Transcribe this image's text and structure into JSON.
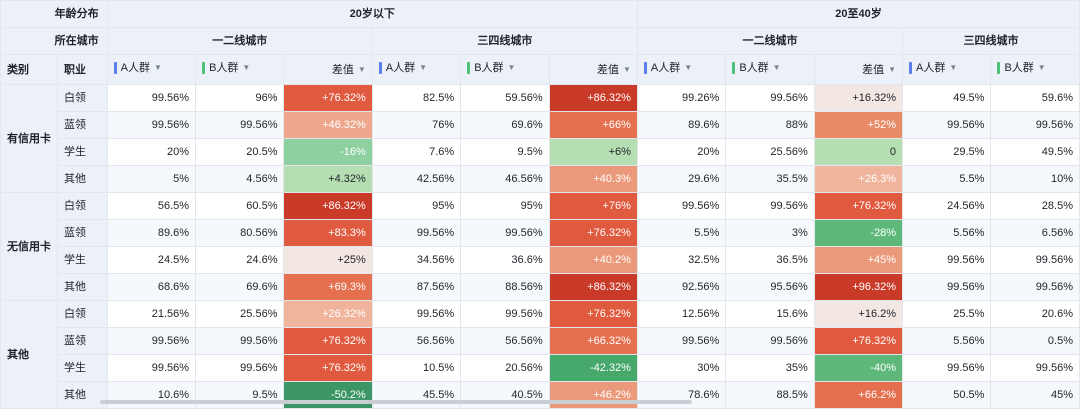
{
  "header": {
    "corner_row1": "年龄分布",
    "corner_row2": "所在城市",
    "col_category": "类别",
    "col_job": "职业",
    "age_groups": [
      {
        "label": "20岁以下",
        "cities": [
          {
            "label": "一二线城市",
            "metrics": [
              "A人群",
              "B人群",
              "差值"
            ]
          },
          {
            "label": "三四线城市",
            "metrics": [
              "A人群",
              "B人群",
              "差值"
            ]
          }
        ]
      },
      {
        "label": "20至40岁",
        "cities": [
          {
            "label": "一二线城市",
            "metrics": [
              "A人群",
              "B人群",
              "差值"
            ]
          },
          {
            "label": "三四线城市",
            "metrics": [
              "A人群",
              "B人群"
            ]
          }
        ]
      }
    ]
  },
  "colors": {
    "metric_a": "#5b7fe8",
    "metric_b": "#4cbf7a",
    "header_bg": "#ecf1f9",
    "border": "#e3e6eb",
    "diff_strong_pos": "#c93a28",
    "diff_pos": "#e05a3f",
    "diff_light_pos": "#eea78d",
    "diff_neutral": "#f5ece9",
    "diff_light_neg": "#b5dfb2",
    "diff_neg": "#5db87a",
    "diff_strong_neg": "#3c9564"
  },
  "rows": [
    {
      "category": "有信用卡",
      "job": "白领",
      "cells": [
        "99.56%",
        "96%",
        "+76.32%",
        "82.5%",
        "59.56%",
        "+86.32%",
        "99.26%",
        "99.56%",
        "+16.32%",
        "49.5%",
        "59.6%"
      ]
    },
    {
      "category": "有信用卡",
      "job": "蓝领",
      "cells": [
        "99.56%",
        "99.56%",
        "+46.32%",
        "76%",
        "69.6%",
        "+66%",
        "89.6%",
        "88%",
        "+52%",
        "99.56%",
        "99.56%"
      ]
    },
    {
      "category": "有信用卡",
      "job": "学生",
      "cells": [
        "20%",
        "20.5%",
        "-16%",
        "7.6%",
        "9.5%",
        "+6%",
        "20%",
        "25.56%",
        "0",
        "29.5%",
        "49.5%"
      ]
    },
    {
      "category": "有信用卡",
      "job": "其他",
      "cells": [
        "5%",
        "4.56%",
        "+4.32%",
        "42.56%",
        "46.56%",
        "+40.3%",
        "29.6%",
        "35.5%",
        "+26.3%",
        "5.5%",
        "10%"
      ]
    },
    {
      "category": "无信用卡",
      "job": "白领",
      "cells": [
        "56.5%",
        "60.5%",
        "+86.32%",
        "95%",
        "95%",
        "+76%",
        "99.56%",
        "99.56%",
        "+76.32%",
        "24.56%",
        "28.5%"
      ]
    },
    {
      "category": "无信用卡",
      "job": "蓝领",
      "cells": [
        "89.6%",
        "80.56%",
        "+83.3%",
        "99.56%",
        "99.56%",
        "+76.32%",
        "5.5%",
        "3%",
        "-28%",
        "5.56%",
        "6.56%"
      ]
    },
    {
      "category": "无信用卡",
      "job": "学生",
      "cells": [
        "24.5%",
        "24.6%",
        "+25%",
        "34.56%",
        "36.6%",
        "+40.2%",
        "32.5%",
        "36.5%",
        "+45%",
        "99.56%",
        "99.56%"
      ]
    },
    {
      "category": "无信用卡",
      "job": "其他",
      "cells": [
        "68.6%",
        "69.6%",
        "+69.3%",
        "87.56%",
        "88.56%",
        "+86.32%",
        "92.56%",
        "95.56%",
        "+96.32%",
        "99.56%",
        "99.56%"
      ]
    },
    {
      "category": "其他",
      "job": "白领",
      "cells": [
        "21.56%",
        "25.56%",
        "+26.32%",
        "99.56%",
        "99.56%",
        "+76.32%",
        "12.56%",
        "15.6%",
        "+16.2%",
        "25.5%",
        "20.6%"
      ]
    },
    {
      "category": "其他",
      "job": "蓝领",
      "cells": [
        "99.56%",
        "99.56%",
        "+76.32%",
        "56.56%",
        "56.56%",
        "+66.32%",
        "99.56%",
        "99.56%",
        "+76.32%",
        "5.56%",
        "0.5%"
      ]
    },
    {
      "category": "其他",
      "job": "学生",
      "cells": [
        "99.56%",
        "99.56%",
        "+76.32%",
        "10.5%",
        "20.56%",
        "-42.32%",
        "30%",
        "35%",
        "-40%",
        "99.56%",
        "99.56%"
      ]
    },
    {
      "category": "其他",
      "job": "其他",
      "cells": [
        "10.6%",
        "9.5%",
        "-50.2%",
        "45.5%",
        "40.5%",
        "+46.2%",
        "78.6%",
        "88.5%",
        "+66.2%",
        "50.5%",
        "45%"
      ]
    }
  ],
  "diff_colors": [
    [
      "#e05a3f",
      "#c93a28",
      "#f3e7e4"
    ],
    [
      "#eea78d",
      "#e4704f",
      "#e98b68"
    ],
    [
      "#8fd0a0",
      "#b5dfb2",
      "#b5dfb2"
    ],
    [
      "#b5dfb2",
      "#ea9a7b",
      "#f0b49d"
    ],
    [
      "#c93a28",
      "#e05a3f",
      "#e05a3f"
    ],
    [
      "#e05a3f",
      "#e05a3f",
      "#5db87a"
    ],
    [
      "#f3e7e4",
      "#ea9a7b",
      "#ea9a7b"
    ],
    [
      "#e4704f",
      "#c93a28",
      "#c93a28"
    ],
    [
      "#f0b49d",
      "#e05a3f",
      "#f3e7e4"
    ],
    [
      "#e05a3f",
      "#e4704f",
      "#e05a3f"
    ],
    [
      "#e05a3f",
      "#46a86a",
      "#5db87a"
    ],
    [
      "#3c9564",
      "#ea9a7b",
      "#e4704f"
    ]
  ]
}
